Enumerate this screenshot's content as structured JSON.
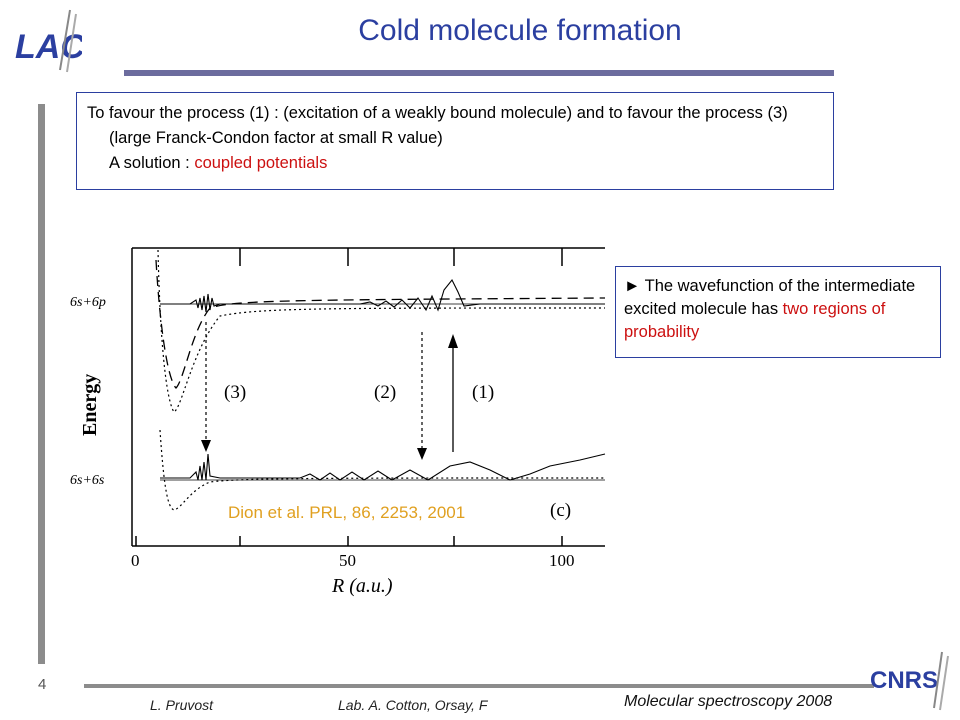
{
  "slide": {
    "title": "Cold molecule formation",
    "number": "4"
  },
  "logos": {
    "top_left": "LAC",
    "bottom_right": "CNRS"
  },
  "intro_box": {
    "line1": "To favour  the process (1) : (excitation of a weakly bound molecule) and  to favour the process (3) (large Franck-Condon factor at small R value)",
    "solution_prefix": "A solution : ",
    "solution_highlight": "coupled potentials"
  },
  "note_box": {
    "bullet": "►",
    "text": " The wavefunction of the intermediate excited molecule has ",
    "highlight": "two regions of probability"
  },
  "figure": {
    "citation": "Dion et al. PRL, 86, 2253, 2001",
    "panel_label": "(c)",
    "ylabel": "Energy",
    "xlabel": "R (a.u.)",
    "level_upper": "6s+6p",
    "level_lower": "6s+6s",
    "process_labels": [
      "(3)",
      "(2)",
      "(1)"
    ],
    "x_ticks": [
      "0",
      "50",
      "100"
    ],
    "xlim": [
      0,
      110
    ]
  },
  "footer": {
    "author": "L. Pruvost",
    "lab": "Lab. A. Cotton, Orsay, F",
    "course": "Molecular spectroscopy  2008"
  },
  "colors": {
    "title": "#2b3fa0",
    "highlight": "#cc1010",
    "citation": "#e0a020"
  }
}
